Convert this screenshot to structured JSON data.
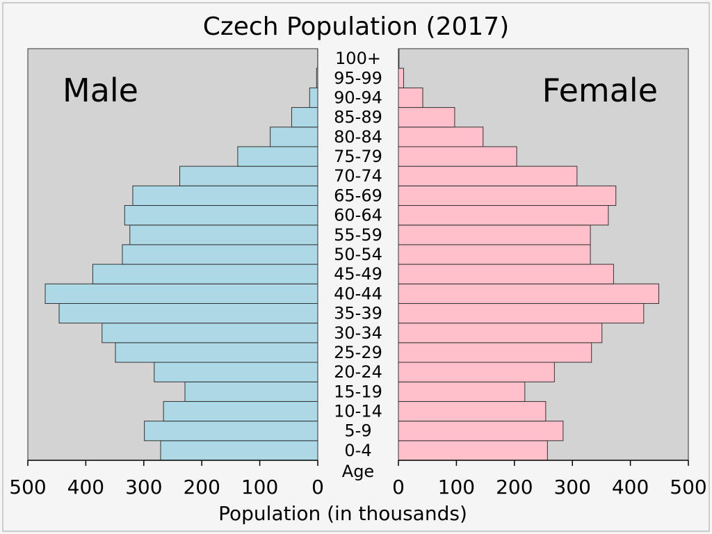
{
  "chart_data": {
    "type": "bar",
    "title": "Czech Population (2017)",
    "xlabel": "Population (in thousands)",
    "age_axis_label": "Age",
    "categories": [
      "0-4",
      "5-9",
      "10-14",
      "15-19",
      "20-24",
      "25-29",
      "30-34",
      "35-39",
      "40-44",
      "45-49",
      "50-54",
      "55-59",
      "60-64",
      "65-69",
      "70-74",
      "75-79",
      "80-84",
      "85-89",
      "90-94",
      "95-99",
      "100+"
    ],
    "series": [
      {
        "name": "Male",
        "color": "#add8e6",
        "values": [
          271,
          299,
          266,
          229,
          282,
          349,
          372,
          446,
          470,
          388,
          337,
          324,
          333,
          319,
          238,
          138,
          82,
          45,
          14,
          2,
          0.2
        ]
      },
      {
        "name": "Female",
        "color": "#ffc0cb",
        "values": [
          257,
          284,
          254,
          218,
          269,
          333,
          351,
          423,
          449,
          371,
          331,
          331,
          362,
          375,
          308,
          204,
          146,
          97,
          42,
          9,
          1
        ]
      }
    ],
    "xlim": [
      0,
      500
    ],
    "xticks": [
      "0",
      "100",
      "200",
      "300",
      "400",
      "500"
    ],
    "orientation": "horizontal-mirrored",
    "grid": false,
    "background_color": "#d3d3d3",
    "figure_background": "#f5f5f5"
  }
}
